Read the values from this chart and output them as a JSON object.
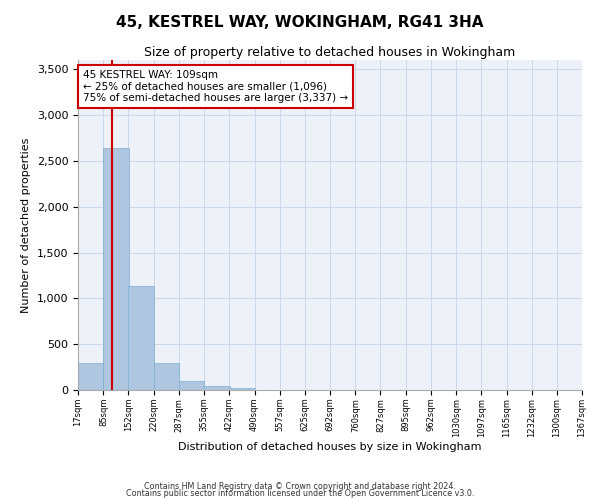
{
  "title": "45, KESTREL WAY, WOKINGHAM, RG41 3HA",
  "subtitle": "Size of property relative to detached houses in Wokingham",
  "xlabel": "Distribution of detached houses by size in Wokingham",
  "ylabel": "Number of detached properties",
  "bar_color": "#aec6df",
  "bar_edge_color": "#7aafd4",
  "grid_color": "#c8d8ea",
  "background_color": "#eef2f8",
  "annotation_line_color": "#cc0000",
  "annotation_box_color": "#cc0000",
  "annotation_text": "45 KESTREL WAY: 109sqm\n← 25% of detached houses are smaller (1,096)\n75% of semi-detached houses are larger (3,337) →",
  "property_size": 109,
  "bin_edges": [
    17,
    85,
    152,
    220,
    287,
    355,
    422,
    490,
    557,
    625,
    692,
    760,
    827,
    895,
    962,
    1030,
    1097,
    1165,
    1232,
    1300,
    1367
  ],
  "bin_labels": [
    "17sqm",
    "85sqm",
    "152sqm",
    "220sqm",
    "287sqm",
    "355sqm",
    "422sqm",
    "490sqm",
    "557sqm",
    "625sqm",
    "692sqm",
    "760sqm",
    "827sqm",
    "895sqm",
    "962sqm",
    "1030sqm",
    "1097sqm",
    "1165sqm",
    "1232sqm",
    "1300sqm",
    "1367sqm"
  ],
  "bar_heights": [
    290,
    2640,
    1140,
    300,
    95,
    40,
    20,
    0,
    0,
    0,
    0,
    0,
    0,
    0,
    0,
    0,
    0,
    0,
    0,
    0
  ],
  "ylim": [
    0,
    3600
  ],
  "yticks": [
    0,
    500,
    1000,
    1500,
    2000,
    2500,
    3000,
    3500
  ],
  "footnote1": "Contains HM Land Registry data © Crown copyright and database right 2024.",
  "footnote2": "Contains public sector information licensed under the Open Government Licence v3.0."
}
